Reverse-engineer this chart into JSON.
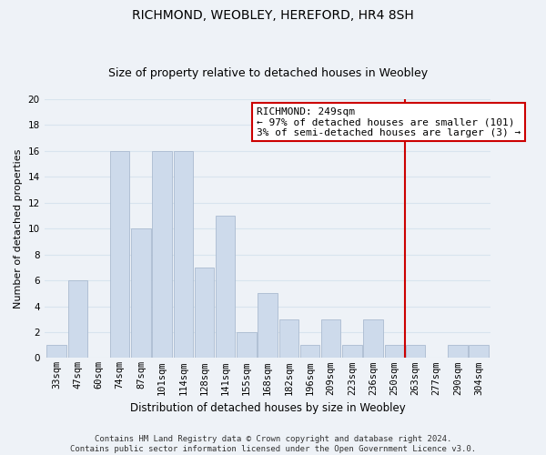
{
  "title": "RICHMOND, WEOBLEY, HEREFORD, HR4 8SH",
  "subtitle": "Size of property relative to detached houses in Weobley",
  "xlabel": "Distribution of detached houses by size in Weobley",
  "ylabel": "Number of detached properties",
  "footer_lines": [
    "Contains HM Land Registry data © Crown copyright and database right 2024.",
    "Contains public sector information licensed under the Open Government Licence v3.0."
  ],
  "bin_labels": [
    "33sqm",
    "47sqm",
    "60sqm",
    "74sqm",
    "87sqm",
    "101sqm",
    "114sqm",
    "128sqm",
    "141sqm",
    "155sqm",
    "168sqm",
    "182sqm",
    "196sqm",
    "209sqm",
    "223sqm",
    "236sqm",
    "250sqm",
    "263sqm",
    "277sqm",
    "290sqm",
    "304sqm"
  ],
  "bar_heights": [
    1,
    6,
    0,
    16,
    10,
    16,
    16,
    7,
    11,
    2,
    5,
    3,
    1,
    3,
    1,
    3,
    1,
    1,
    0,
    1,
    1
  ],
  "bar_color": "#cddaeb",
  "bar_edge_color": "#aabbd0",
  "ylim": [
    0,
    20
  ],
  "yticks": [
    0,
    2,
    4,
    6,
    8,
    10,
    12,
    14,
    16,
    18,
    20
  ],
  "richmond_line_index": 16,
  "annotation_title": "RICHMOND: 249sqm",
  "annotation_line1": "← 97% of detached houses are smaller (101)",
  "annotation_line2": "3% of semi-detached houses are larger (3) →",
  "annotation_box_color": "#ffffff",
  "annotation_box_edge_color": "#cc0000",
  "vline_color": "#cc0000",
  "grid_color": "#d8e4ee",
  "background_color": "#eef2f7",
  "plot_bg_color": "#eef2f7",
  "title_fontsize": 10,
  "subtitle_fontsize": 9,
  "ylabel_fontsize": 8,
  "xlabel_fontsize": 8.5,
  "tick_fontsize": 7.5,
  "footer_fontsize": 6.5,
  "ann_fontsize": 8
}
